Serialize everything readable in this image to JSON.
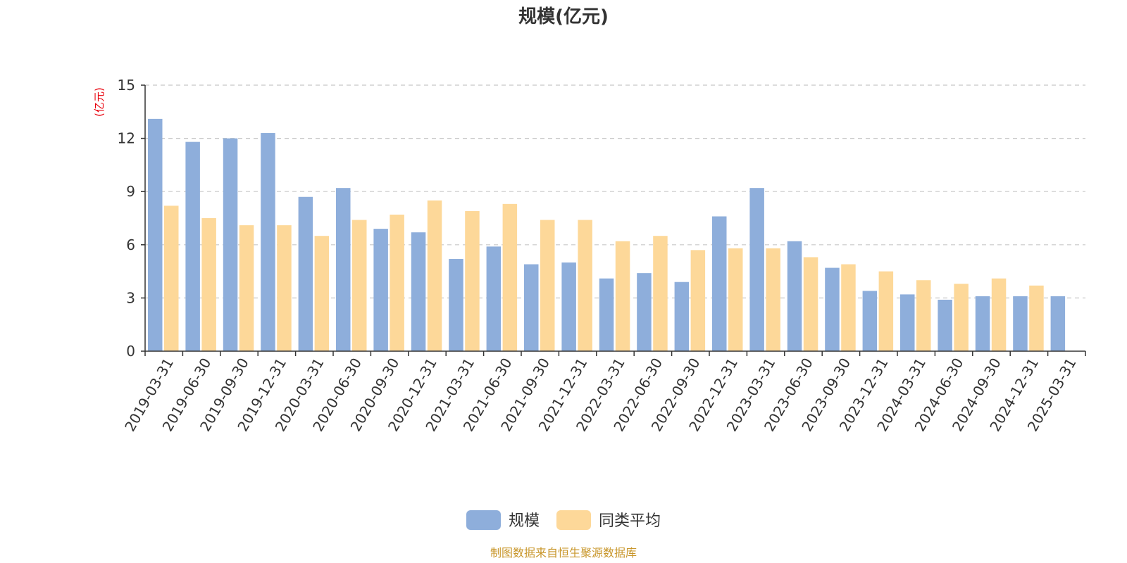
{
  "chart_data": {
    "type": "bar",
    "title": "规模(亿元)",
    "ylabel": "(亿元)",
    "ylim": [
      0,
      15
    ],
    "yticks": [
      0,
      3,
      6,
      9,
      12,
      15
    ],
    "grid": "horizontal dashed",
    "legend_position": "bottom",
    "categories": [
      "2019-03-31",
      "2019-06-30",
      "2019-09-30",
      "2019-12-31",
      "2020-03-31",
      "2020-06-30",
      "2020-09-30",
      "2020-12-31",
      "2021-03-31",
      "2021-06-30",
      "2021-09-30",
      "2021-12-31",
      "2022-03-31",
      "2022-06-30",
      "2022-09-30",
      "2022-12-31",
      "2023-03-31",
      "2023-06-30",
      "2023-09-30",
      "2023-12-31",
      "2024-03-31",
      "2024-06-30",
      "2024-09-30",
      "2024-12-31",
      "2025-03-31"
    ],
    "series": [
      {
        "name": "规模",
        "color": "#8eaedb",
        "values": [
          13.1,
          11.8,
          12.0,
          12.3,
          8.7,
          9.2,
          6.9,
          6.7,
          5.2,
          5.9,
          4.9,
          5.0,
          4.1,
          4.4,
          3.9,
          7.6,
          9.2,
          6.2,
          4.7,
          3.4,
          3.2,
          2.9,
          3.1,
          3.1,
          3.1
        ]
      },
      {
        "name": "同类平均",
        "color": "#fdd899",
        "values": [
          8.2,
          7.5,
          7.1,
          7.1,
          6.5,
          7.4,
          7.7,
          8.5,
          7.9,
          8.3,
          7.4,
          7.4,
          6.2,
          6.5,
          5.7,
          5.8,
          5.8,
          5.3,
          4.9,
          4.5,
          4.0,
          3.8,
          4.1,
          3.7,
          null
        ]
      }
    ]
  },
  "footer": {
    "source": "制图数据来自恒生聚源数据库"
  }
}
